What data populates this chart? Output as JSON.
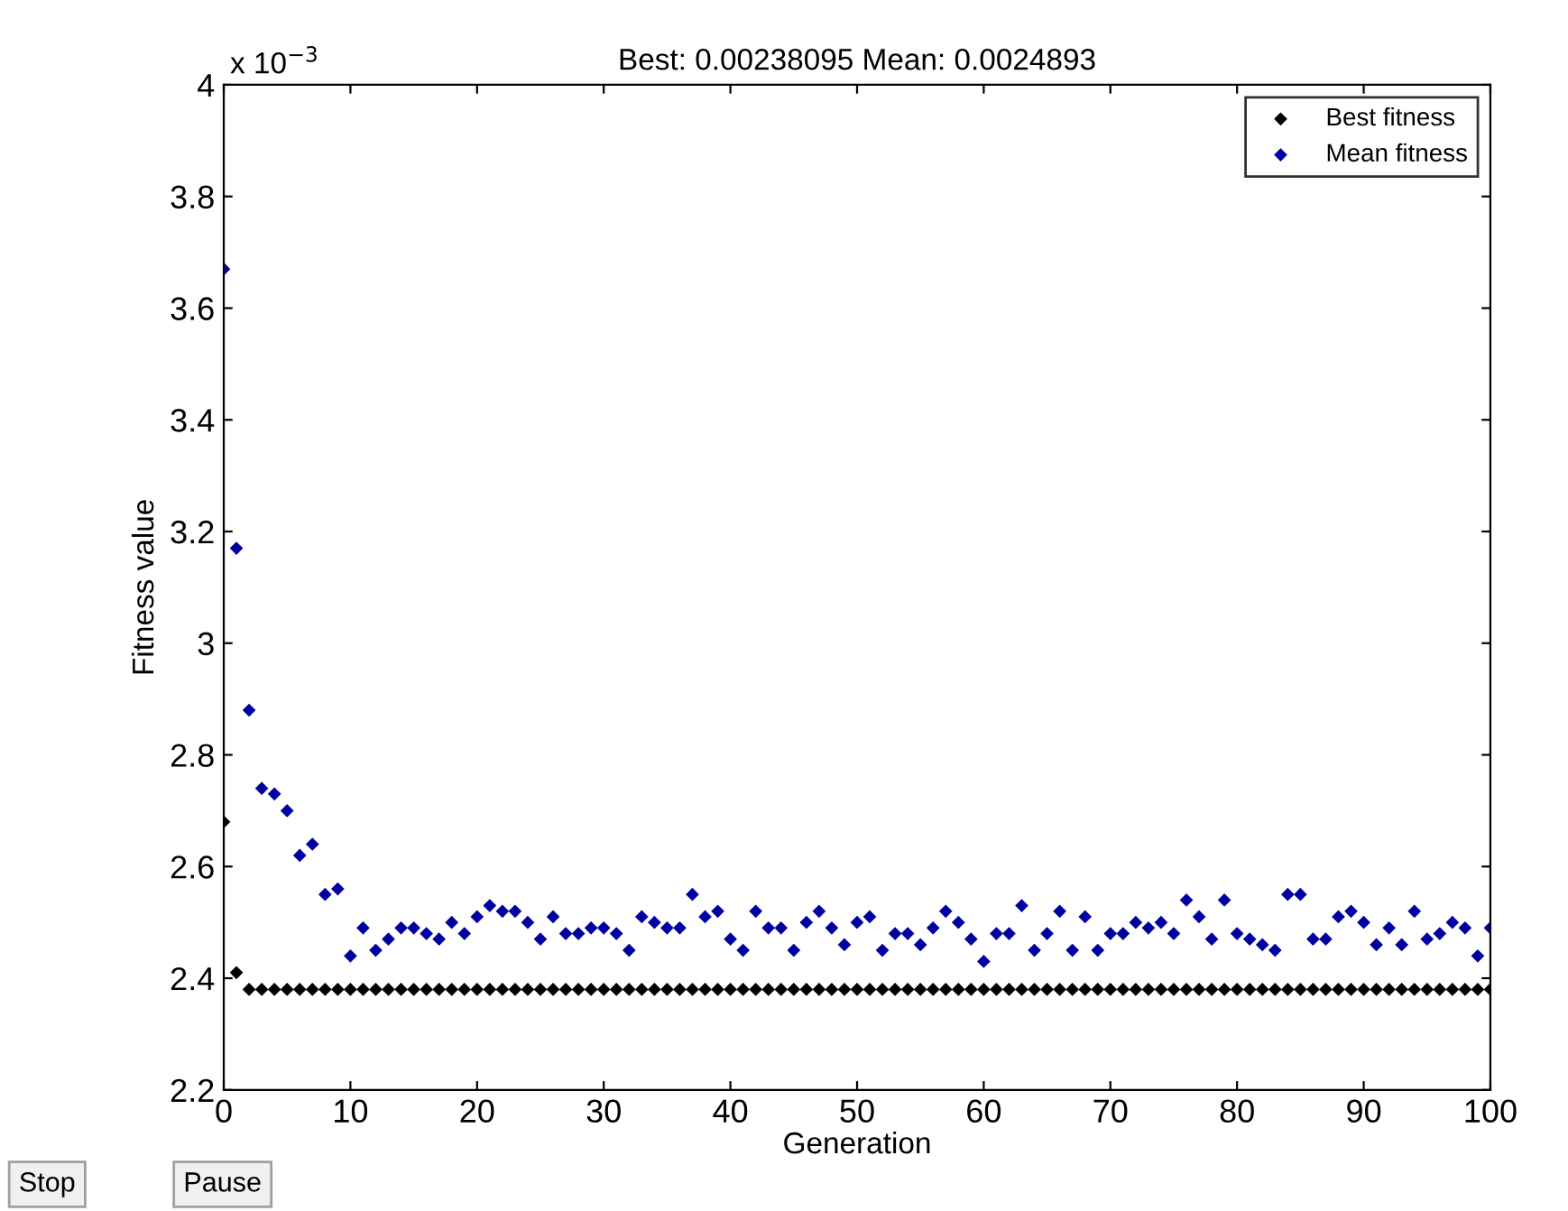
{
  "chart_data": {
    "type": "scatter",
    "title": "Best: 0.00238095 Mean: 0.0024893",
    "xlabel": "Generation",
    "ylabel": "Fitness value",
    "annotations": [
      "x 10$^{−3}$",
      "Stop",
      "Pause"
    ],
    "x": [
      0,
      1,
      2,
      3,
      4,
      5,
      6,
      7,
      8,
      9,
      10,
      11,
      12,
      13,
      14,
      15,
      16,
      17,
      18,
      19,
      20,
      21,
      22,
      23,
      24,
      25,
      26,
      27,
      28,
      29,
      30,
      31,
      32,
      33,
      34,
      35,
      36,
      37,
      38,
      39,
      40,
      41,
      42,
      43,
      44,
      45,
      46,
      47,
      48,
      49,
      50,
      51,
      52,
      53,
      54,
      55,
      56,
      57,
      58,
      59,
      60,
      61,
      62,
      63,
      64,
      65,
      66,
      67,
      68,
      69,
      70,
      71,
      72,
      73,
      74,
      75,
      76,
      77,
      78,
      79,
      80,
      81,
      82,
      83,
      84,
      85,
      86,
      87,
      88,
      89,
      90,
      91,
      92,
      93,
      94,
      95,
      96,
      97,
      98,
      99,
      100
    ],
    "series": [
      {
        "name": "Best fitness",
        "color": "#000000",
        "values": [
          2.68,
          2.41,
          2.38,
          2.38,
          2.38,
          2.38,
          2.38,
          2.38,
          2.38,
          2.38,
          2.38,
          2.38,
          2.38,
          2.38,
          2.38,
          2.38,
          2.38,
          2.38,
          2.38,
          2.38,
          2.38,
          2.38,
          2.38,
          2.38,
          2.38,
          2.38,
          2.38,
          2.38,
          2.38,
          2.38,
          2.38,
          2.38,
          2.38,
          2.38,
          2.38,
          2.38,
          2.38,
          2.38,
          2.38,
          2.38,
          2.38,
          2.38,
          2.38,
          2.38,
          2.38,
          2.38,
          2.38,
          2.38,
          2.38,
          2.38,
          2.38,
          2.38,
          2.38,
          2.38,
          2.38,
          2.38,
          2.38,
          2.38,
          2.38,
          2.38,
          2.38,
          2.38,
          2.38,
          2.38,
          2.38,
          2.38,
          2.38,
          2.38,
          2.38,
          2.38,
          2.38,
          2.38,
          2.38,
          2.38,
          2.38,
          2.38,
          2.38,
          2.38,
          2.38,
          2.38,
          2.38,
          2.38,
          2.38,
          2.38,
          2.38,
          2.38,
          2.38,
          2.38,
          2.38,
          2.38,
          2.38,
          2.38,
          2.38,
          2.38,
          2.38,
          2.38,
          2.38,
          2.38,
          2.38,
          2.38,
          2.38
        ]
      },
      {
        "name": "Mean fitness",
        "color": "#0000a0",
        "values": [
          3.67,
          3.17,
          2.88,
          2.74,
          2.73,
          2.7,
          2.62,
          2.64,
          2.55,
          2.56,
          2.44,
          2.49,
          2.45,
          2.47,
          2.49,
          2.49,
          2.48,
          2.47,
          2.5,
          2.48,
          2.51,
          2.53,
          2.52,
          2.52,
          2.5,
          2.47,
          2.51,
          2.48,
          2.48,
          2.49,
          2.49,
          2.48,
          2.45,
          2.51,
          2.5,
          2.49,
          2.49,
          2.55,
          2.51,
          2.52,
          2.47,
          2.45,
          2.52,
          2.49,
          2.49,
          2.45,
          2.5,
          2.52,
          2.49,
          2.46,
          2.5,
          2.51,
          2.45,
          2.48,
          2.48,
          2.46,
          2.49,
          2.52,
          2.5,
          2.47,
          2.43,
          2.48,
          2.48,
          2.53,
          2.45,
          2.48,
          2.52,
          2.45,
          2.51,
          2.45,
          2.48,
          2.48,
          2.5,
          2.49,
          2.5,
          2.48,
          2.54,
          2.51,
          2.47,
          2.54,
          2.48,
          2.47,
          2.46,
          2.45,
          2.55,
          2.55,
          2.47,
          2.47,
          2.51,
          2.52,
          2.5,
          2.46,
          2.49,
          2.46,
          2.52,
          2.47,
          2.48,
          2.5,
          2.49,
          2.44,
          2.49
        ]
      }
    ],
    "xlim": [
      0,
      100
    ],
    "xticks": [
      0,
      10,
      20,
      30,
      40,
      50,
      60,
      70,
      80,
      90,
      100
    ],
    "ylim": [
      2.2,
      4
    ],
    "yticks": [
      2.2,
      2.4,
      2.6,
      2.8,
      3,
      3.2,
      3.4,
      3.6,
      3.8,
      4
    ],
    "marker": "diamond",
    "legend": "top right",
    "grid": false
  }
}
